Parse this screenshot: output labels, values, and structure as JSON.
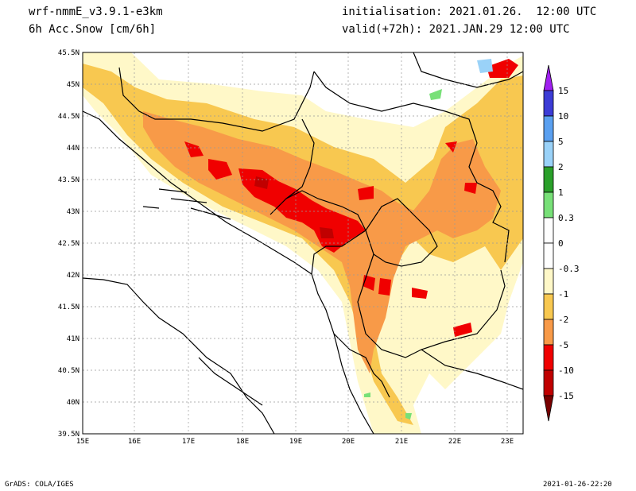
{
  "header": {
    "model": "wrf-nmmE_v3.9.1-e3km",
    "variable": "6h Acc.Snow [cm/6h]",
    "init": "initialisation: 2021.01.26.  12:00 UTC",
    "valid": "valid(+72h): 2021.JAN.29 12:00 UTC"
  },
  "footer": {
    "credit": "GrADS: COLA/IGES",
    "timestamp": "2021-01-26-22:20"
  },
  "map": {
    "lon_labels": [
      "15E",
      "16E",
      "17E",
      "18E",
      "19E",
      "20E",
      "21E",
      "22E",
      "23E"
    ],
    "lat_labels": [
      "45.5N",
      "45N",
      "44.5N",
      "44N",
      "43.5N",
      "43N",
      "42.5N",
      "42N",
      "41.5N",
      "41N",
      "40.5N",
      "40N",
      "39.5N"
    ]
  },
  "colorbar": {
    "labels": [
      "15",
      "10",
      "5",
      "2",
      "1",
      "0.3",
      "0",
      "-0.3",
      "-1",
      "-2",
      "-5",
      "-10",
      "-15"
    ],
    "colors": [
      "#3c3cd6",
      "#5aa0f0",
      "#9ad2f8",
      "#2aa02a",
      "#78e078",
      "#ffffff",
      "#ffffff",
      "#fff8c8",
      "#f8c850",
      "#f89a48",
      "#f00000",
      "#c00000",
      "#780000"
    ],
    "top_arrow_color": "#a020f0",
    "bottom_arrow_color": "#780000"
  }
}
